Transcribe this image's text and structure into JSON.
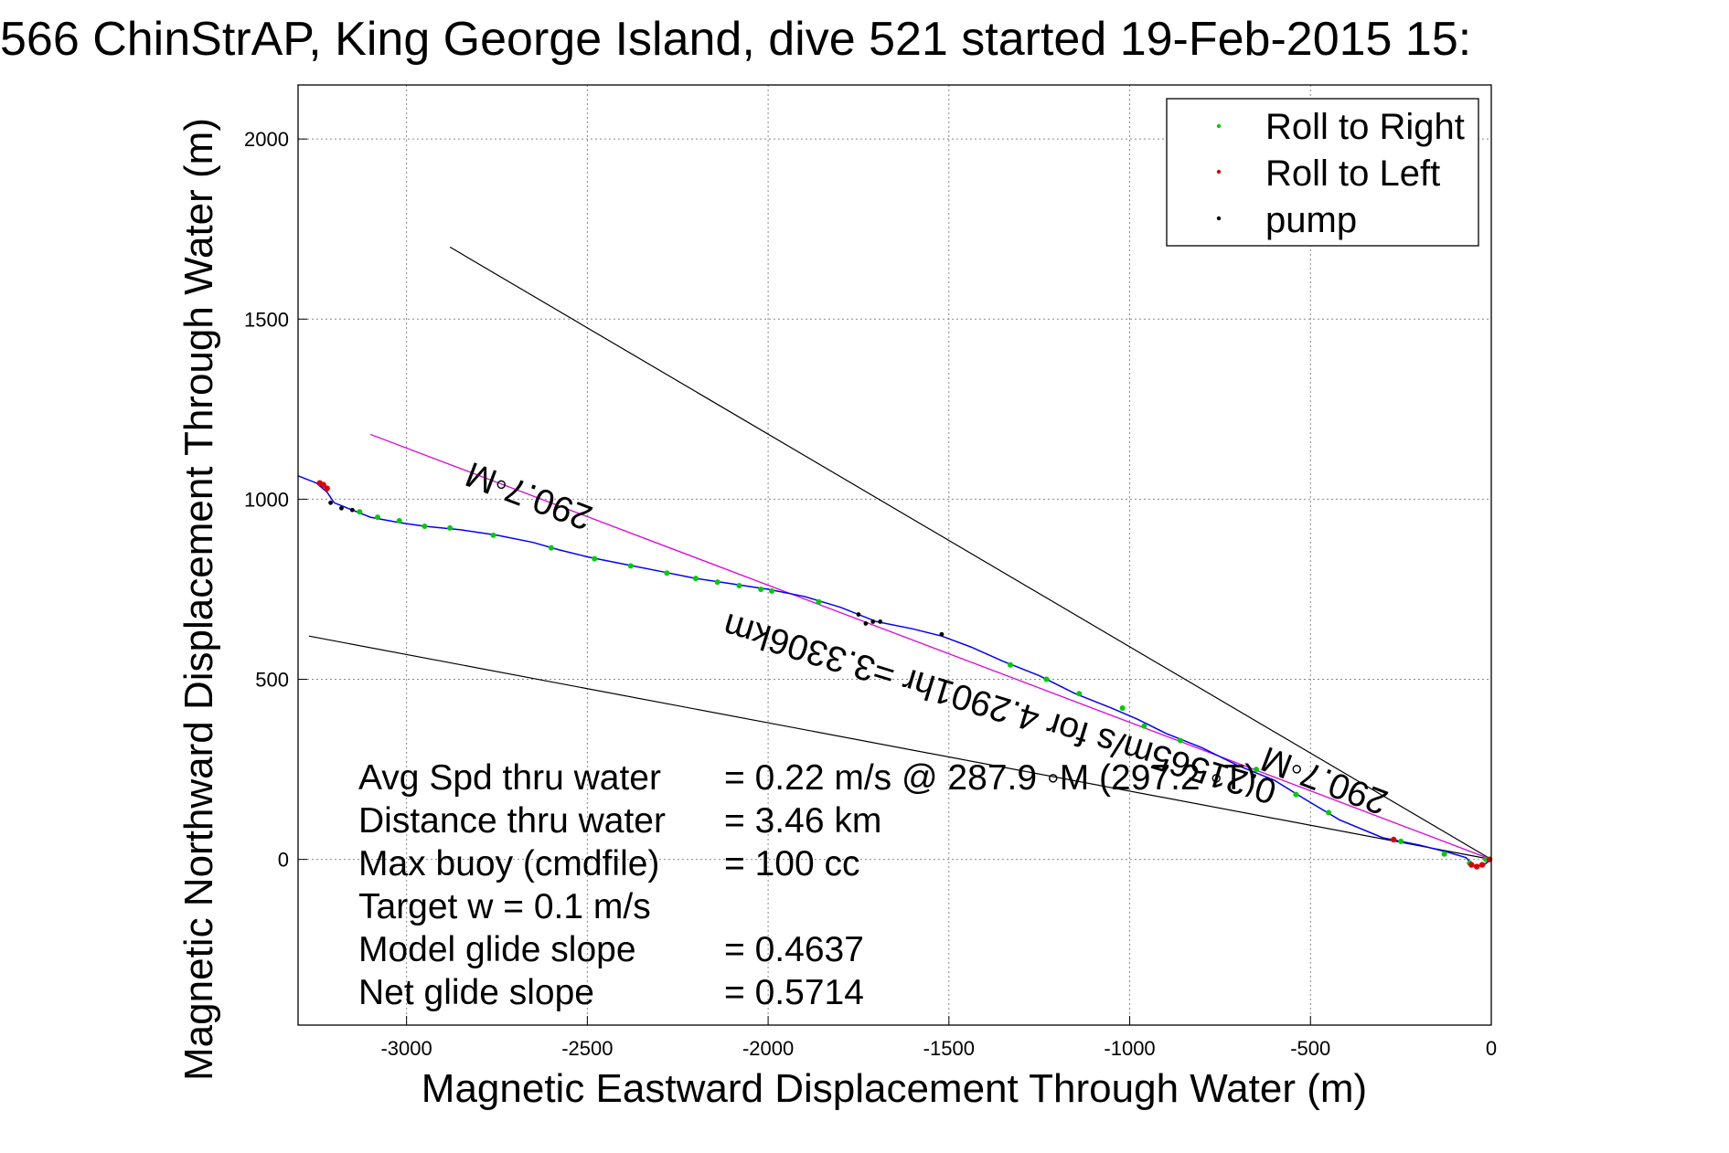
{
  "chart_data": {
    "type": "scatter",
    "title": "566 ChinStrAP, King George Island, dive 521 started 19-Feb-2015 15:",
    "xlabel": "Magnetic Eastward Displacement Through Water (m)",
    "ylabel": "Magnetic Northward Displacement Through Water (m)",
    "xlim": [
      -3300,
      0
    ],
    "ylim": [
      -460,
      2150
    ],
    "xticks": [
      -3000,
      -2500,
      -2000,
      -1500,
      -1000,
      -500,
      0
    ],
    "yticks": [
      0,
      500,
      1000,
      1500,
      2000
    ],
    "grid": true,
    "legend_position": "top-right",
    "colors": {
      "track": "#0000ff",
      "roll_right": "#00cc00",
      "roll_left": "#dd0000",
      "pump": "#000000",
      "heading_line": "#dd00dd",
      "cone_lines": "#000000"
    },
    "legend": [
      {
        "name": "Roll to Right",
        "color": "#00cc00"
      },
      {
        "name": "Roll to Left",
        "color": "#dd0000"
      },
      {
        "name": "pump",
        "color": "#000000"
      }
    ],
    "track": [
      [
        0,
        0
      ],
      [
        -20,
        -15
      ],
      [
        -45,
        -20
      ],
      [
        -70,
        5
      ],
      [
        -120,
        20
      ],
      [
        -200,
        40
      ],
      [
        -300,
        60
      ],
      [
        -420,
        110
      ],
      [
        -520,
        170
      ],
      [
        -600,
        220
      ],
      [
        -700,
        260
      ],
      [
        -800,
        310
      ],
      [
        -900,
        350
      ],
      [
        -980,
        390
      ],
      [
        -1050,
        420
      ],
      [
        -1150,
        460
      ],
      [
        -1250,
        510
      ],
      [
        -1350,
        550
      ],
      [
        -1440,
        590
      ],
      [
        -1520,
        620
      ],
      [
        -1600,
        640
      ],
      [
        -1700,
        660
      ],
      [
        -1800,
        700
      ],
      [
        -1900,
        730
      ],
      [
        -2000,
        750
      ],
      [
        -2100,
        765
      ],
      [
        -2200,
        780
      ],
      [
        -2300,
        800
      ],
      [
        -2400,
        820
      ],
      [
        -2500,
        840
      ],
      [
        -2580,
        860
      ],
      [
        -2650,
        880
      ],
      [
        -2750,
        900
      ],
      [
        -2850,
        915
      ],
      [
        -2950,
        925
      ],
      [
        -3020,
        935
      ],
      [
        -3100,
        950
      ],
      [
        -3150,
        970
      ],
      [
        -3200,
        990
      ],
      [
        -3220,
        1020
      ],
      [
        -3250,
        1045
      ],
      [
        -3300,
        1065
      ]
    ],
    "roll_right_points": [
      [
        -15,
        0
      ],
      [
        -60,
        -10
      ],
      [
        -130,
        15
      ],
      [
        -250,
        50
      ],
      [
        -450,
        130
      ],
      [
        -540,
        180
      ],
      [
        -650,
        250
      ],
      [
        -860,
        330
      ],
      [
        -960,
        370
      ],
      [
        -1020,
        420
      ],
      [
        -1140,
        460
      ],
      [
        -1230,
        500
      ],
      [
        -1330,
        540
      ],
      [
        -1860,
        715
      ],
      [
        -1990,
        745
      ],
      [
        -2020,
        750
      ],
      [
        -2080,
        760
      ],
      [
        -2140,
        770
      ],
      [
        -2200,
        780
      ],
      [
        -2280,
        795
      ],
      [
        -2380,
        815
      ],
      [
        -2480,
        835
      ],
      [
        -2600,
        865
      ],
      [
        -2760,
        900
      ],
      [
        -2880,
        920
      ],
      [
        -2950,
        925
      ],
      [
        -3020,
        940
      ],
      [
        -3080,
        950
      ],
      [
        -3130,
        965
      ]
    ],
    "roll_left_points": [
      [
        -5,
        0
      ],
      [
        -25,
        -15
      ],
      [
        -40,
        -20
      ],
      [
        -55,
        -15
      ],
      [
        -270,
        55
      ],
      [
        -3220,
        1030
      ],
      [
        -3230,
        1040
      ],
      [
        -3240,
        1045
      ]
    ],
    "pump_points": [
      [
        -1520,
        625
      ],
      [
        -1690,
        660
      ],
      [
        -1710,
        660
      ],
      [
        -1730,
        655
      ],
      [
        -1750,
        680
      ],
      [
        -3150,
        970
      ],
      [
        -3180,
        975
      ],
      [
        -3210,
        990
      ]
    ],
    "heading_line": [
      [
        0,
        0
      ],
      [
        -3100,
        1180
      ]
    ],
    "cone_lines": [
      {
        "from": [
          0,
          0
        ],
        "to": [
          -2880,
          1700
        ]
      },
      {
        "from": [
          0,
          0
        ],
        "to": [
          -3270,
          620
        ]
      }
    ],
    "annotations": [
      {
        "text": "290.7◦M",
        "x": -2650,
        "y": 1040
      },
      {
        "text": "290.7◦M",
        "x": -450,
        "y": 250
      },
      {
        "text": "0.21565m/s for 4.2901hr =3.3306km",
        "x": -1350,
        "y": 450
      }
    ],
    "stats": [
      {
        "label": "Avg Spd thru water",
        "value": "=  0.22 m/s @ 287.9 ◦M (297.2 ◦T)"
      },
      {
        "label": "Distance thru water",
        "value": "=  3.46 km"
      },
      {
        "label": "Max buoy (cmdfile)",
        "value": "= 100 cc"
      },
      {
        "label": "Target w    = 0.1 m/s",
        "value": ""
      },
      {
        "label": "Model glide slope",
        "value": "= 0.4637"
      },
      {
        "label": "Net glide slope",
        "value": "= 0.5714"
      }
    ]
  }
}
